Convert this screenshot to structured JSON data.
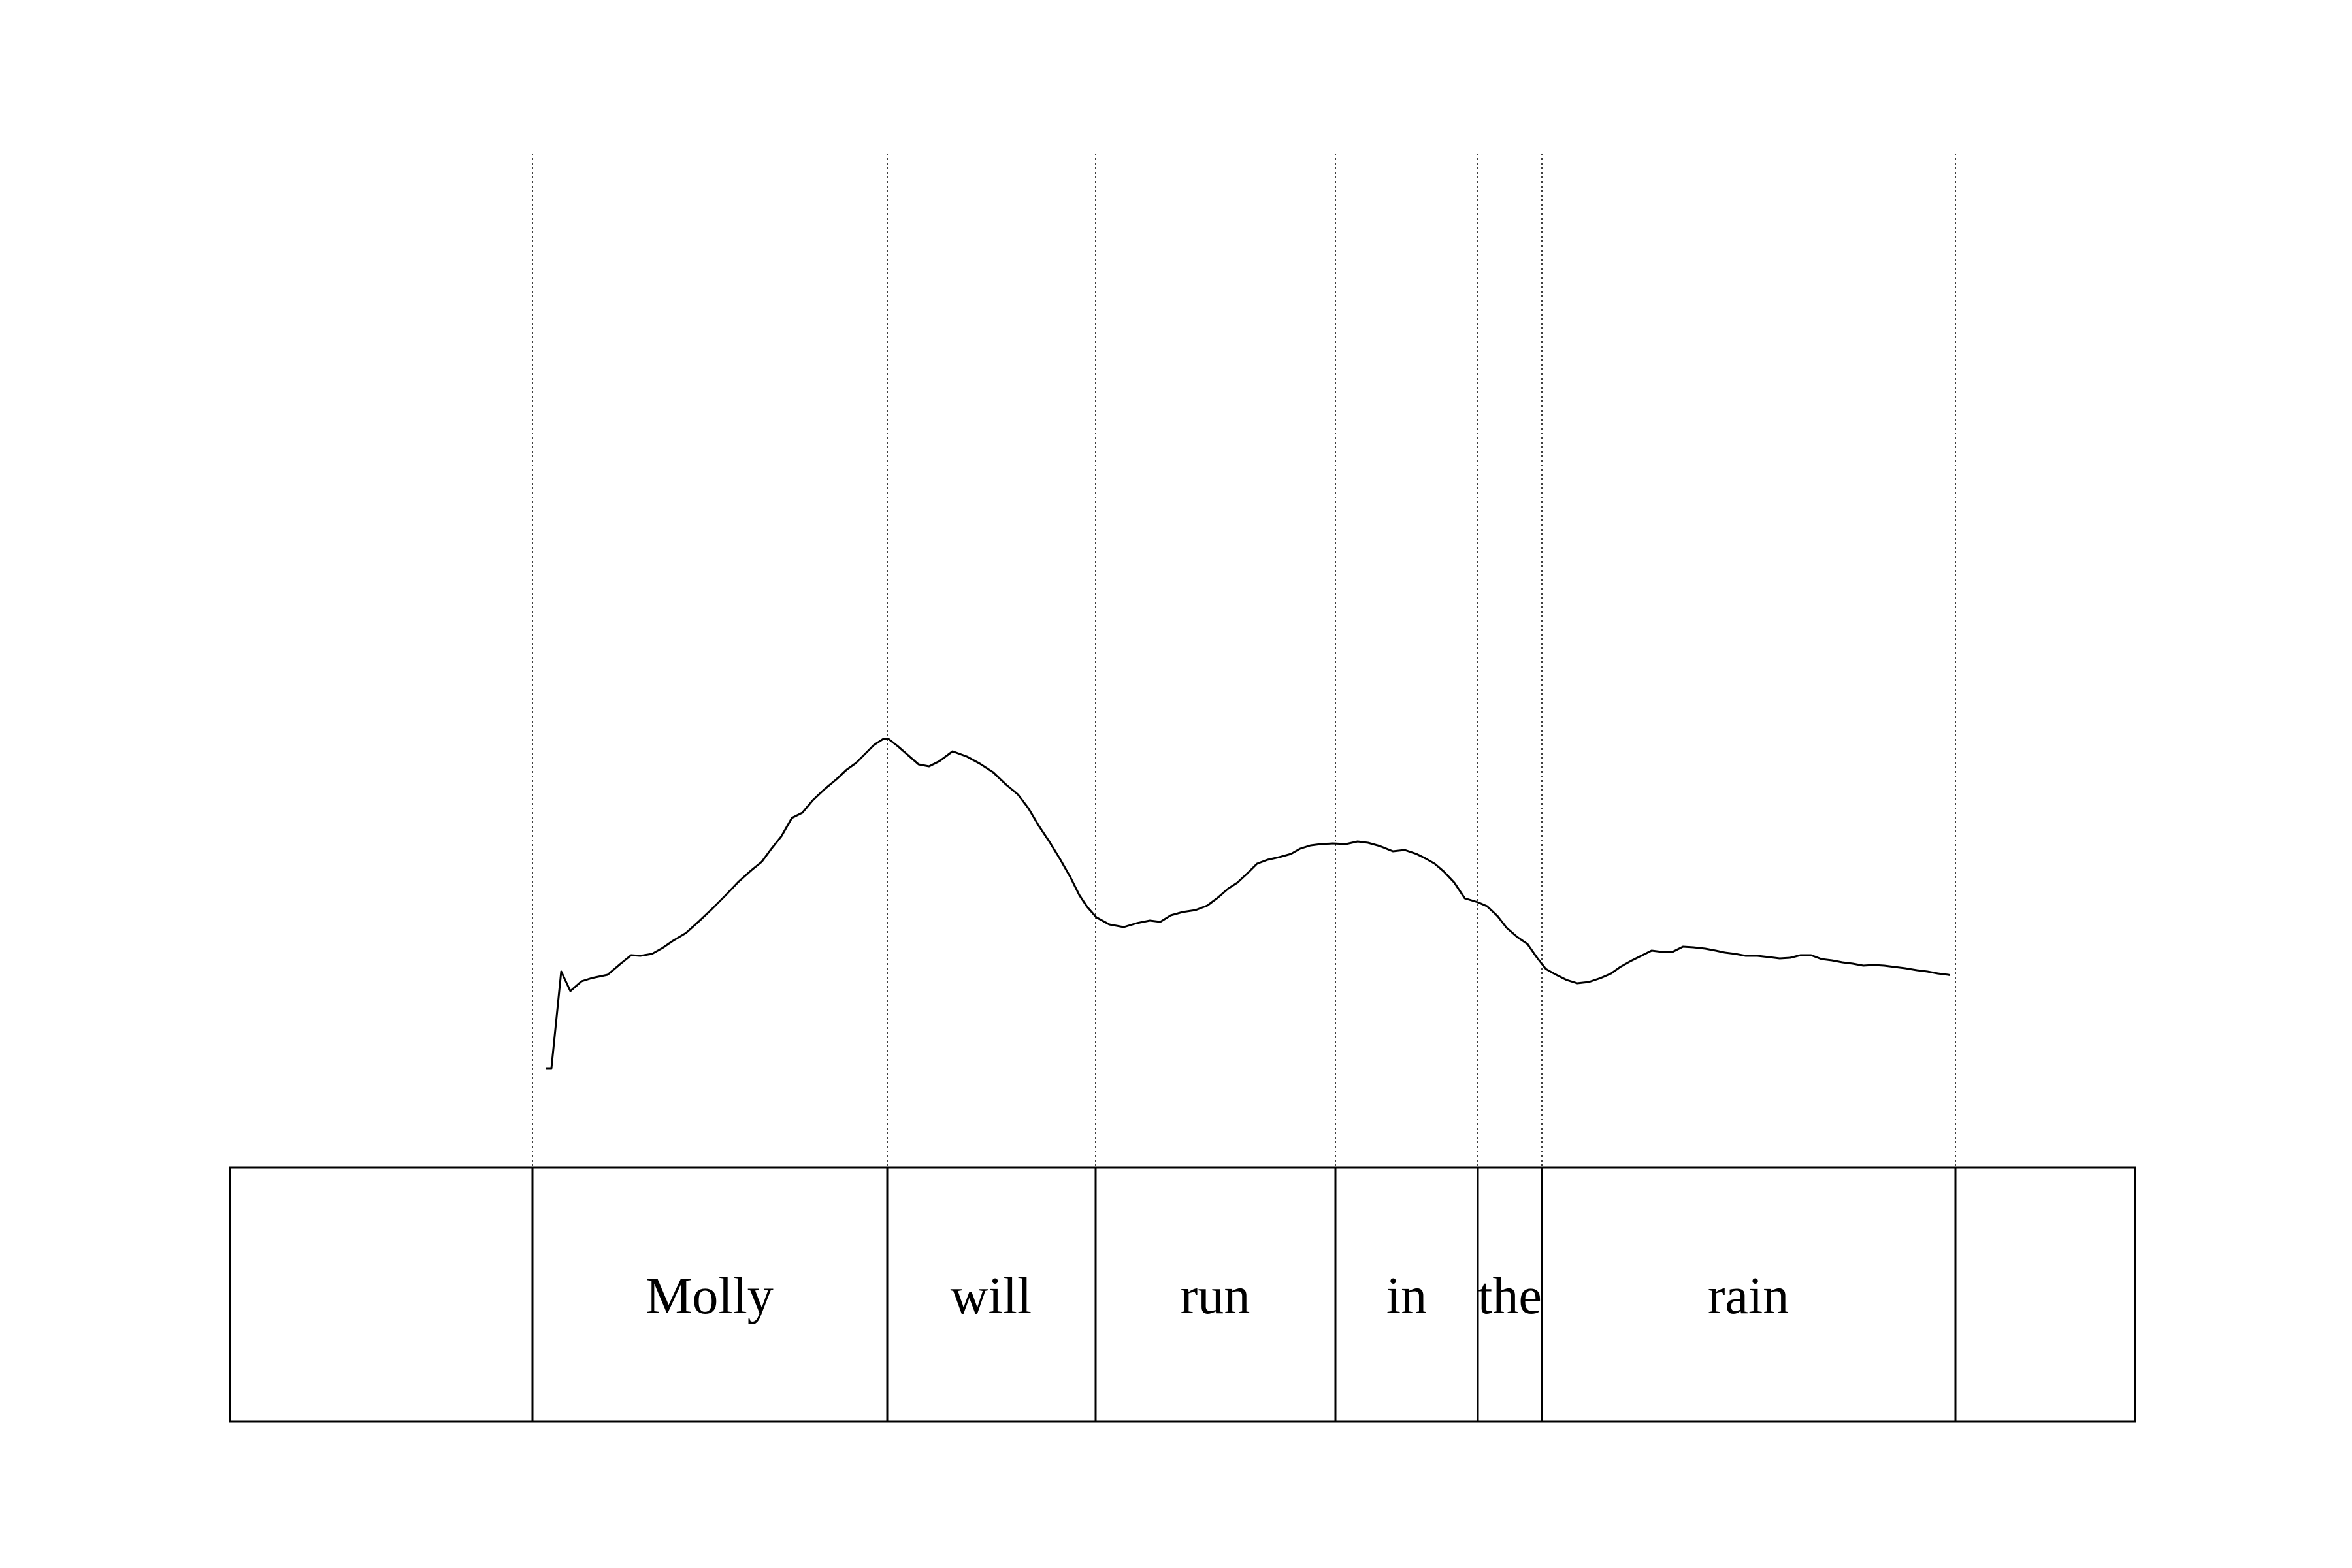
{
  "segments": [
    {
      "label": "",
      "role": "silence"
    },
    {
      "label": "Molly",
      "role": "word"
    },
    {
      "label": "will",
      "role": "word"
    },
    {
      "label": "run",
      "role": "word"
    },
    {
      "label": "in",
      "role": "word"
    },
    {
      "label": "the",
      "role": "word"
    },
    {
      "label": "rain",
      "role": "word"
    },
    {
      "label": "",
      "role": "silence"
    }
  ],
  "colors": {
    "stroke": "#000000",
    "background": "#ffffff"
  }
}
